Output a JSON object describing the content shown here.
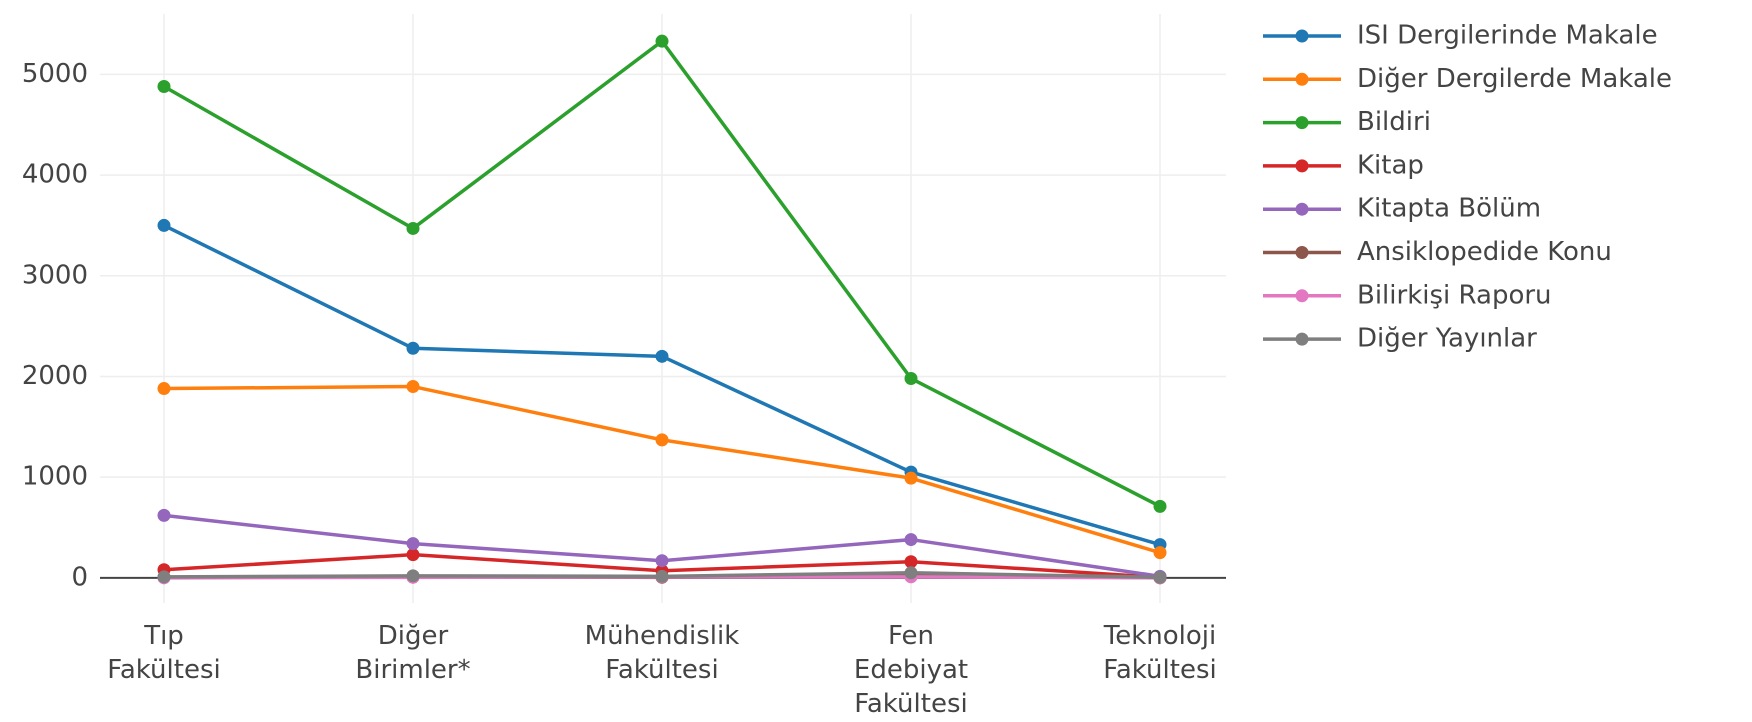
{
  "chart_data": {
    "type": "line",
    "categories": [
      "Tıp Fakültesi",
      "Diğer Birimler*",
      "Mühendislik Fakültesi",
      "Fen Edebiyat Fakültesi",
      "Teknoloji Fakültesi"
    ],
    "series": [
      {
        "name": "ISI Dergilerinde Makale",
        "color": "#1f77b4",
        "values": [
          3500,
          2280,
          2200,
          1050,
          330
        ]
      },
      {
        "name": "Diğer Dergilerde Makale",
        "color": "#ff7f0e",
        "values": [
          1880,
          1900,
          1370,
          990,
          250
        ]
      },
      {
        "name": "Bildiri",
        "color": "#2ca02c",
        "values": [
          4880,
          3470,
          5330,
          1980,
          710
        ]
      },
      {
        "name": "Kitap",
        "color": "#d62728",
        "values": [
          80,
          230,
          70,
          160,
          5
        ]
      },
      {
        "name": "Kitapta Bölüm",
        "color": "#9467bd",
        "values": [
          620,
          340,
          170,
          380,
          15
        ]
      },
      {
        "name": "Ansiklopedide Konu",
        "color": "#8c564b",
        "values": [
          5,
          15,
          5,
          30,
          0
        ]
      },
      {
        "name": "Bilirkişi Raporu",
        "color": "#e377c2",
        "values": [
          0,
          5,
          10,
          10,
          0
        ]
      },
      {
        "name": "Diğer Yayınlar",
        "color": "#7f7f7f",
        "values": [
          10,
          20,
          15,
          50,
          5
        ]
      }
    ],
    "ylim": [
      -250,
      5600
    ],
    "yticks": [
      0,
      1000,
      2000,
      3000,
      4000,
      5000
    ],
    "grid": true,
    "legend": "right"
  }
}
